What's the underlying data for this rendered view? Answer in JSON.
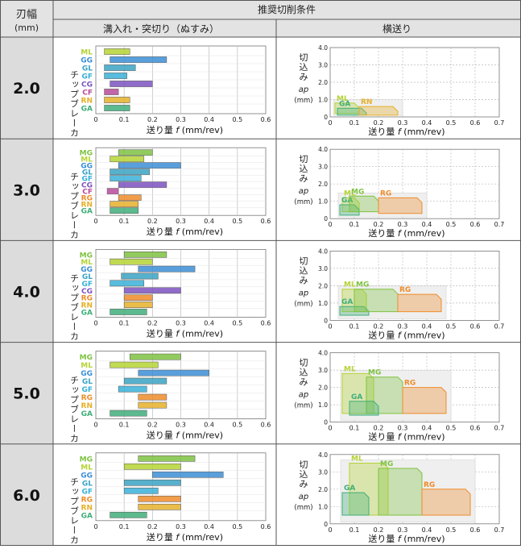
{
  "header": {
    "col0_top": "刃幅",
    "col0_bottom": "(mm)",
    "group_title": "推奨切削条件",
    "col_grooving": "溝入れ・突切り（ぬすみ）",
    "col_turning": "横送り"
  },
  "axis_text": {
    "xlabel_prefix": "送り量 ",
    "xlabel_var": "f",
    "xlabel_unit": " (mm/rev)",
    "ylabel_left": "チップブレーカ",
    "ylabel_right_1": "切",
    "ylabel_right_2": "込",
    "ylabel_right_3": "み",
    "ylabel_right_var": "ap",
    "ylabel_right_unit": "(mm)",
    "x_ticks": [
      "0",
      "0.1",
      "0.2",
      "0.3",
      "0.4",
      "0.5",
      "0.6"
    ],
    "x_ticks_right": [
      "0",
      "0.1",
      "0.2",
      "0.3",
      "0.4",
      "0.5",
      "0.6",
      "0.7"
    ],
    "y_ticks_right": [
      "4.0",
      "3.0",
      "2.0",
      "1.0",
      "0"
    ]
  },
  "colors": {
    "ML": "#b5d334",
    "GG": "#3c8ed6",
    "GL": "#39a3c3",
    "GF": "#3ab0d8",
    "CG": "#7d52bf",
    "CF": "#b84a9a",
    "RN": "#e6b02a",
    "RG": "#ef8c2a",
    "GA": "#3fae7a",
    "MG": "#7fc241",
    "grid": "#bbbbbb",
    "zone": "#efefef"
  },
  "chart_data": [
    {
      "width": "2.0",
      "grooving": {
        "type": "bar",
        "xlim": [
          0,
          0.6
        ],
        "bars": [
          {
            "label": "ML",
            "min": 0.03,
            "max": 0.12
          },
          {
            "label": "GG",
            "min": 0.05,
            "max": 0.25
          },
          {
            "label": "GL",
            "min": 0.03,
            "max": 0.14
          },
          {
            "label": "GF",
            "min": 0.03,
            "max": 0.11
          },
          {
            "label": "CG",
            "min": 0.05,
            "max": 0.2
          },
          {
            "label": "CF",
            "min": 0.03,
            "max": 0.08
          },
          {
            "label": "RN",
            "min": 0.03,
            "max": 0.12
          },
          {
            "label": "GA",
            "min": 0.03,
            "max": 0.12
          }
        ]
      },
      "turning": {
        "type": "area",
        "xlim": [
          0,
          0.7
        ],
        "ylim": [
          0,
          4
        ],
        "regions": [
          {
            "label": "ML",
            "f": [
              0.02,
              0.12
            ],
            "ap": [
              0.2,
              0.8
            ]
          },
          {
            "label": "GA",
            "f": [
              0.03,
              0.15
            ],
            "ap": [
              0.1,
              0.5
            ]
          },
          {
            "label": "RN",
            "f": [
              0.12,
              0.28
            ],
            "ap": [
              0.1,
              0.6
            ]
          }
        ]
      }
    },
    {
      "width": "3.0",
      "grooving": {
        "type": "bar",
        "xlim": [
          0,
          0.6
        ],
        "bars": [
          {
            "label": "MG",
            "min": 0.08,
            "max": 0.2
          },
          {
            "label": "ML",
            "min": 0.05,
            "max": 0.17
          },
          {
            "label": "GG",
            "min": 0.08,
            "max": 0.3
          },
          {
            "label": "GL",
            "min": 0.05,
            "max": 0.19
          },
          {
            "label": "GF",
            "min": 0.05,
            "max": 0.16
          },
          {
            "label": "CG",
            "min": 0.08,
            "max": 0.25
          },
          {
            "label": "CF",
            "min": 0.04,
            "max": 0.08
          },
          {
            "label": "RG",
            "min": 0.08,
            "max": 0.16
          },
          {
            "label": "RN",
            "min": 0.05,
            "max": 0.15
          },
          {
            "label": "GA",
            "min": 0.05,
            "max": 0.15
          }
        ]
      },
      "turning": {
        "type": "area",
        "xlim": [
          0,
          0.7
        ],
        "ylim": [
          0,
          4
        ],
        "regions": [
          {
            "label": "ML",
            "f": [
              0.05,
              0.12
            ],
            "ap": [
              0.4,
              1.2
            ]
          },
          {
            "label": "GA",
            "f": [
              0.04,
              0.12
            ],
            "ap": [
              0.2,
              0.8
            ]
          },
          {
            "label": "MG",
            "f": [
              0.08,
              0.2
            ],
            "ap": [
              0.4,
              1.3
            ]
          },
          {
            "label": "RG",
            "f": [
              0.2,
              0.38
            ],
            "ap": [
              0.3,
              1.2
            ]
          }
        ]
      }
    },
    {
      "width": "4.0",
      "grooving": {
        "type": "bar",
        "xlim": [
          0,
          0.6
        ],
        "bars": [
          {
            "label": "MG",
            "min": 0.1,
            "max": 0.25
          },
          {
            "label": "ML",
            "min": 0.05,
            "max": 0.2
          },
          {
            "label": "GG",
            "min": 0.15,
            "max": 0.35
          },
          {
            "label": "GL",
            "min": 0.09,
            "max": 0.22
          },
          {
            "label": "GF",
            "min": 0.05,
            "max": 0.17
          },
          {
            "label": "CG",
            "min": 0.1,
            "max": 0.3
          },
          {
            "label": "RG",
            "min": 0.1,
            "max": 0.2
          },
          {
            "label": "RN",
            "min": 0.1,
            "max": 0.2
          },
          {
            "label": "GA",
            "min": 0.05,
            "max": 0.18
          }
        ]
      },
      "turning": {
        "type": "area",
        "xlim": [
          0,
          0.7
        ],
        "ylim": [
          0,
          4
        ],
        "regions": [
          {
            "label": "ML",
            "f": [
              0.05,
              0.15
            ],
            "ap": [
              0.5,
              1.8
            ]
          },
          {
            "label": "GA",
            "f": [
              0.04,
              0.16
            ],
            "ap": [
              0.3,
              0.8
            ]
          },
          {
            "label": "MG",
            "f": [
              0.1,
              0.28
            ],
            "ap": [
              0.5,
              1.8
            ]
          },
          {
            "label": "RG",
            "f": [
              0.28,
              0.46
            ],
            "ap": [
              0.5,
              1.5
            ]
          }
        ]
      }
    },
    {
      "width": "5.0",
      "grooving": {
        "type": "bar",
        "xlim": [
          0,
          0.6
        ],
        "bars": [
          {
            "label": "MG",
            "min": 0.12,
            "max": 0.3
          },
          {
            "label": "ML",
            "min": 0.05,
            "max": 0.22
          },
          {
            "label": "GG",
            "min": 0.15,
            "max": 0.4
          },
          {
            "label": "GL",
            "min": 0.1,
            "max": 0.25
          },
          {
            "label": "GF",
            "min": 0.08,
            "max": 0.18
          },
          {
            "label": "RG",
            "min": 0.15,
            "max": 0.25
          },
          {
            "label": "RN",
            "min": 0.15,
            "max": 0.25
          },
          {
            "label": "GA",
            "min": 0.05,
            "max": 0.18
          }
        ]
      },
      "turning": {
        "type": "area",
        "xlim": [
          0,
          0.7
        ],
        "ylim": [
          0,
          4
        ],
        "regions": [
          {
            "label": "ML",
            "f": [
              0.05,
              0.18
            ],
            "ap": [
              0.5,
              2.8
            ]
          },
          {
            "label": "MG",
            "f": [
              0.15,
              0.3
            ],
            "ap": [
              0.5,
              2.6
            ]
          },
          {
            "label": "RG",
            "f": [
              0.3,
              0.48
            ],
            "ap": [
              0.5,
              2.0
            ]
          },
          {
            "label": "GA",
            "f": [
              0.08,
              0.2
            ],
            "ap": [
              0.4,
              1.2
            ]
          }
        ]
      }
    },
    {
      "width": "6.0",
      "grooving": {
        "type": "bar",
        "xlim": [
          0,
          0.6
        ],
        "bars": [
          {
            "label": "MG",
            "min": 0.15,
            "max": 0.35
          },
          {
            "label": "ML",
            "min": 0.1,
            "max": 0.3
          },
          {
            "label": "GG",
            "min": 0.2,
            "max": 0.45
          },
          {
            "label": "GL",
            "min": 0.1,
            "max": 0.3
          },
          {
            "label": "GF",
            "min": 0.1,
            "max": 0.22
          },
          {
            "label": "RG",
            "min": 0.15,
            "max": 0.3
          },
          {
            "label": "RN",
            "min": 0.15,
            "max": 0.3
          },
          {
            "label": "GA",
            "min": 0.05,
            "max": 0.18
          }
        ]
      },
      "turning": {
        "type": "area",
        "xlim": [
          0,
          0.7
        ],
        "ylim": [
          0,
          4
        ],
        "regions": [
          {
            "label": "ML",
            "f": [
              0.08,
              0.24
            ],
            "ap": [
              0.5,
              3.5
            ]
          },
          {
            "label": "MG",
            "f": [
              0.2,
              0.38
            ],
            "ap": [
              0.5,
              3.2
            ]
          },
          {
            "label": "RG",
            "f": [
              0.38,
              0.58
            ],
            "ap": [
              0.5,
              2.0
            ]
          },
          {
            "label": "GA",
            "f": [
              0.05,
              0.16
            ],
            "ap": [
              0.5,
              1.8
            ]
          }
        ]
      }
    }
  ]
}
